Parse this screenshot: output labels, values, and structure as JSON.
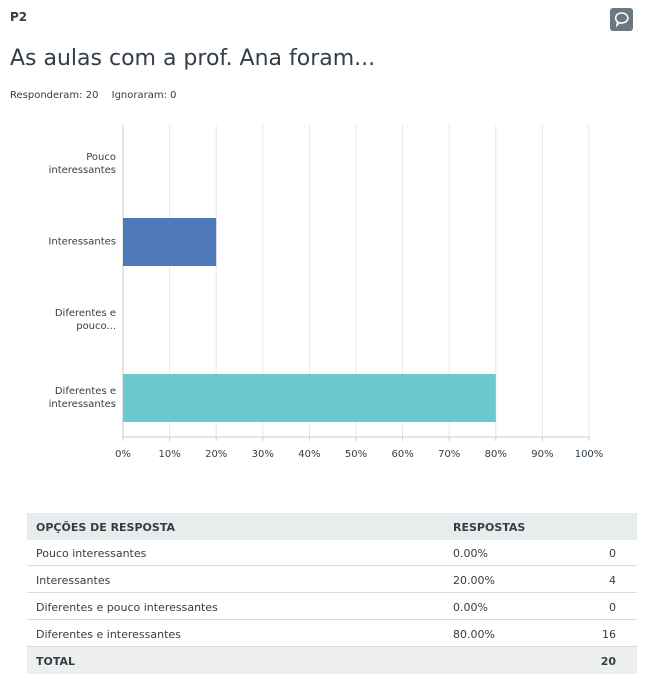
{
  "question": {
    "number": "P2",
    "title": "As aulas com a prof. Ana foram...",
    "answered_label": "Responderam:",
    "answered": 20,
    "skipped_label": "Ignoraram:",
    "skipped": 0
  },
  "chart_data": {
    "type": "barh",
    "categories": [
      "Pouco interessantes",
      "Interessantes",
      "Diferentes e pouco...",
      "Diferentes e interessantes"
    ],
    "values": [
      0,
      20,
      0,
      80
    ],
    "colors": [
      "#4e79b8",
      "#4e79b8",
      "#6cc8cc",
      "#6cc8cc"
    ],
    "xlim": [
      0,
      100
    ],
    "xticks": [
      {
        "value": 0,
        "label": "0%"
      },
      {
        "value": 10,
        "label": "10%"
      },
      {
        "value": 20,
        "label": "20%"
      },
      {
        "value": 30,
        "label": "30%"
      },
      {
        "value": 40,
        "label": "40%"
      },
      {
        "value": 50,
        "label": "50%"
      },
      {
        "value": 60,
        "label": "60%"
      },
      {
        "value": 70,
        "label": "70%"
      },
      {
        "value": 80,
        "label": "80%"
      },
      {
        "value": 90,
        "label": "90%"
      },
      {
        "value": 100,
        "label": "100%"
      }
    ],
    "grid": true
  },
  "table": {
    "columns": [
      "OPÇÕES DE RESPOSTA",
      "RESPOSTAS"
    ],
    "rows": [
      [
        "Pouco interessantes",
        "0.00%",
        0
      ],
      [
        "Interessantes",
        "20.00%",
        4
      ],
      [
        "Diferentes e pouco interessantes",
        "0.00%",
        0
      ],
      [
        "Diferentes e interessantes",
        "80.00%",
        16
      ]
    ],
    "total": {
      "label": "TOTAL",
      "count": 20
    }
  }
}
